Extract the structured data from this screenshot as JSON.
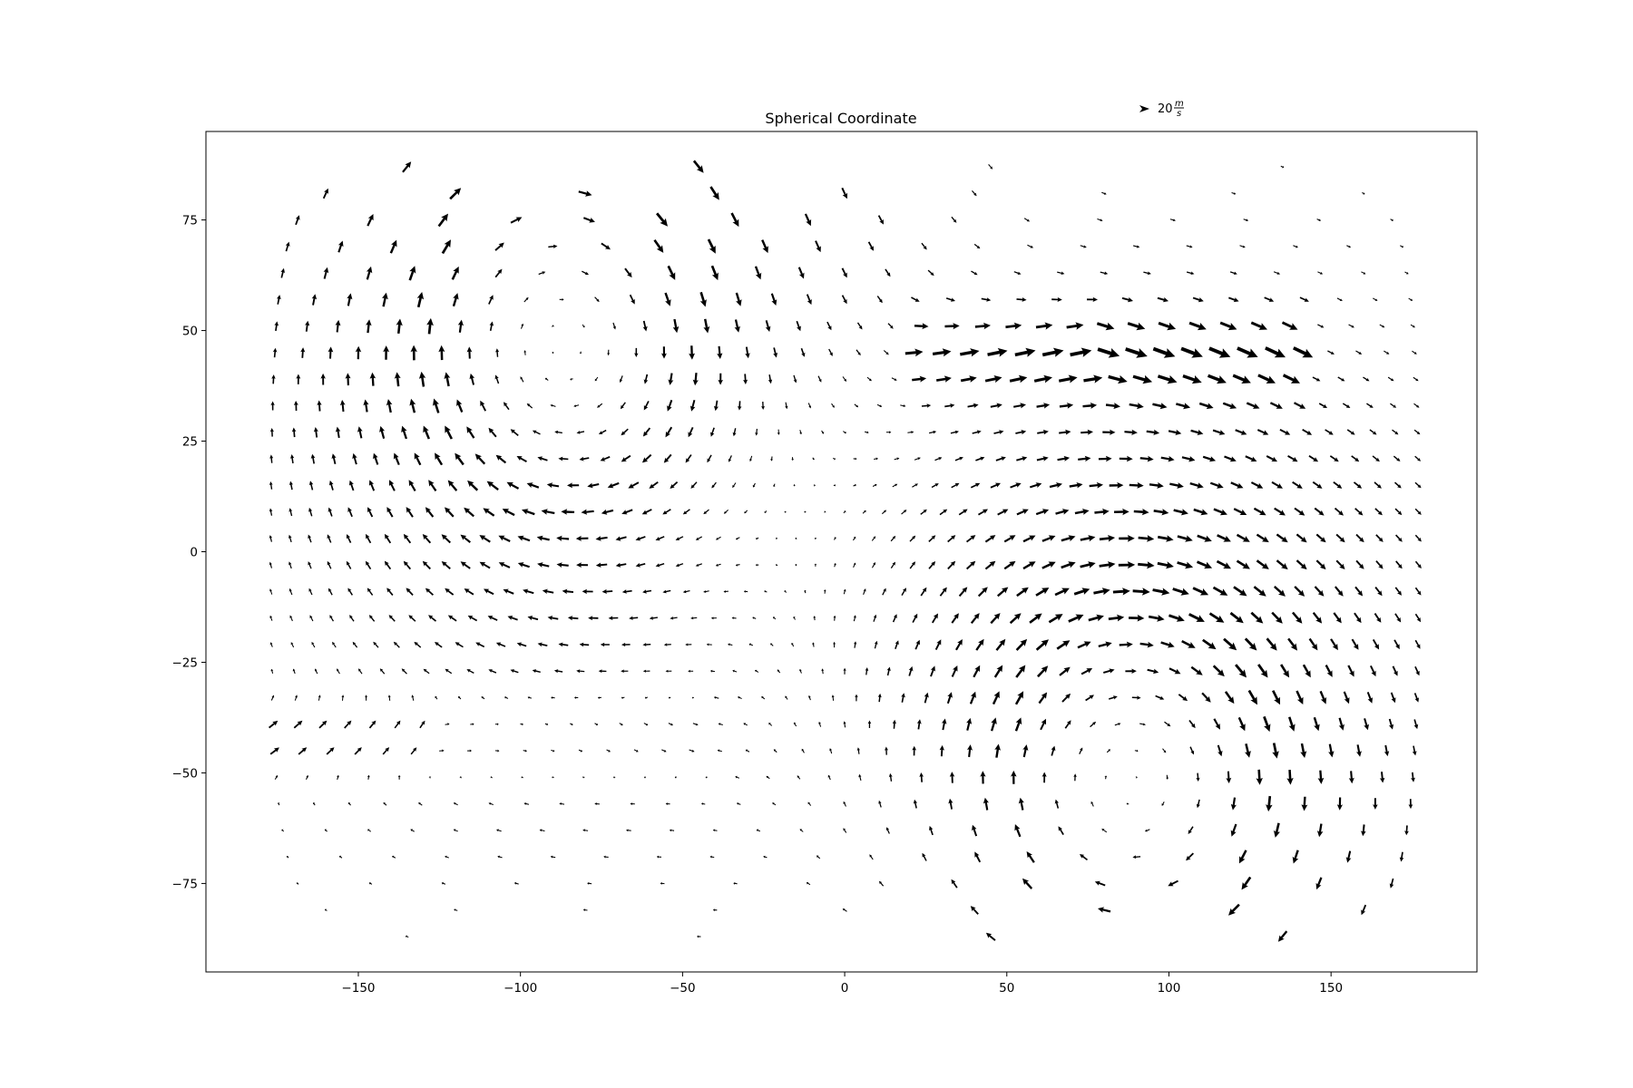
{
  "chart_data": {
    "type": "quiver",
    "title": "Spherical Coordinate",
    "xlabel": "",
    "ylabel": "",
    "xlim": [
      -197,
      195
    ],
    "ylim": [
      -95,
      95
    ],
    "x_ticks": [
      -150,
      -100,
      -50,
      0,
      50,
      100,
      150
    ],
    "x_tick_labels": [
      "−150",
      "−100",
      "−50",
      "0",
      "50",
      "100",
      "150"
    ],
    "y_ticks": [
      -75,
      -50,
      -25,
      0,
      25,
      50,
      75
    ],
    "y_tick_labels": [
      "−75",
      "−50",
      "−25",
      "0",
      "25",
      "50",
      "75"
    ],
    "grid": false,
    "quiver_key": {
      "magnitude": 20,
      "label_value": "20",
      "label_unit_num": "m",
      "label_unit_den": "s",
      "placement": "above top-right of axes"
    },
    "arrow_color": "#000000",
    "field": {
      "description_of_pattern": "vector field sampled on lon/lat grid, ~6 degree spacing",
      "lon_range": [
        -180,
        180
      ],
      "lat_range": [
        -90,
        90
      ],
      "sources": [
        {
          "center": [
            -88,
            50
          ],
          "sign": "cw"
        },
        {
          "center": [
            90,
            -50
          ],
          "sign": "cw"
        }
      ],
      "jets": [
        {
          "lon": [
            20,
            140
          ],
          "lat": 45,
          "speed": 30
        },
        {
          "lon": [
            -180,
            -40
          ],
          "lat": -42,
          "speed": 30
        }
      ]
    }
  }
}
